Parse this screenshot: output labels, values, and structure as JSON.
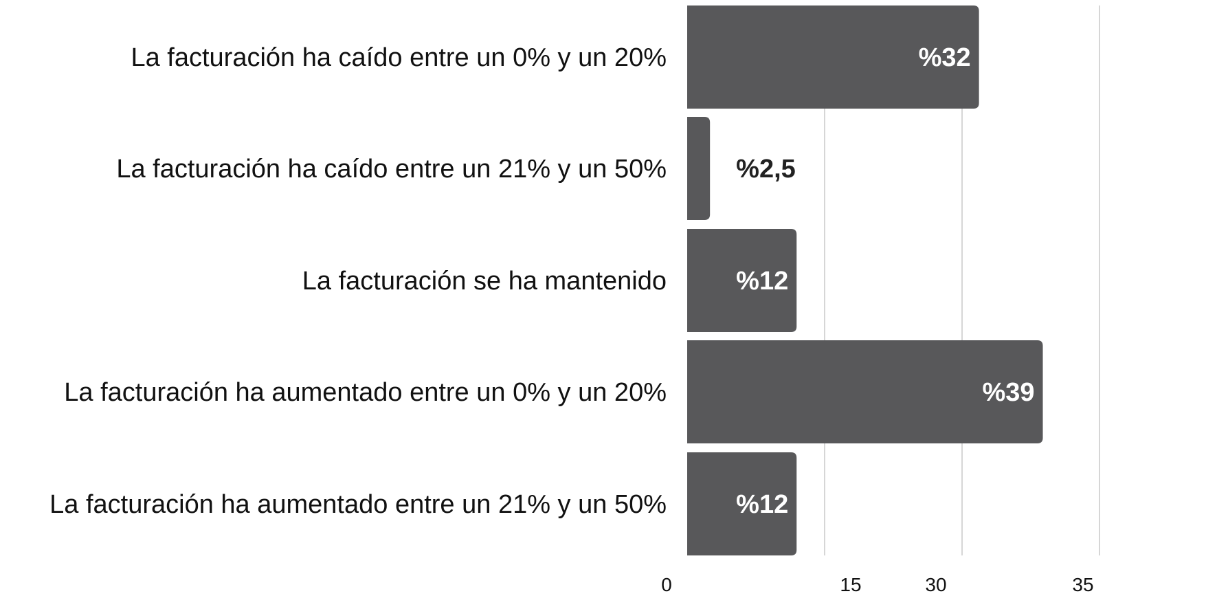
{
  "chart_data": {
    "type": "bar",
    "orientation": "horizontal",
    "title": "",
    "xlabel": "",
    "ylabel": "",
    "categories": [
      "La facturación ha caído entre un 0% y un 20%",
      "La facturación ha caído entre un 21% y un 50%",
      "La facturación se ha mantenido",
      "La facturación ha aumentado entre un 0% y un 20%",
      "La facturación ha aumentado entre un 21% y un 50%"
    ],
    "values": [
      32,
      2.5,
      12,
      39,
      12
    ],
    "data_labels": [
      "%32",
      "%2,5",
      "%12",
      "%39",
      "%12"
    ],
    "x_ticks": [
      "0",
      "15",
      "30",
      "35"
    ],
    "bar_color": "#58585a",
    "grid": true,
    "legend": "none"
  }
}
